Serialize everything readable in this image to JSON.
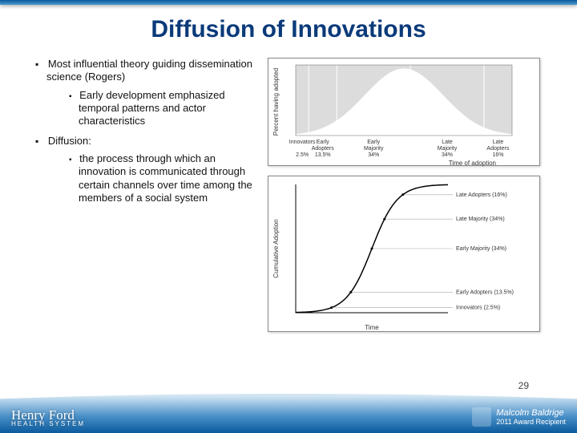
{
  "title": "Diffusion of Innovations",
  "bullets": {
    "b1": "Most influential theory guiding dissemination science (Rogers)",
    "b1_1": "Early development emphasized temporal patterns and actor characteristics",
    "b2": "Diffusion:",
    "b2_1": "the process through which an innovation is communicated through certain channels over time among the members of a social system"
  },
  "top_chart": {
    "type": "bell-curve-segments",
    "x_axis_label": "Time of adoption",
    "y_axis_label": "Percent having adopted",
    "background_color": "#dcdcdc",
    "curve_color": "#ffffff",
    "text_color": "#333333",
    "segments": [
      {
        "label": "Innovators",
        "pct": "2.5%",
        "p": 0.06
      },
      {
        "label": "Early Adopters",
        "pct": "13.5%",
        "p": 0.19
      },
      {
        "label": "Early Majority",
        "pct": "34%",
        "p": 0.53
      },
      {
        "label": "Late Majority",
        "pct": "34%",
        "p": 0.87
      },
      {
        "label": "Late Adopters",
        "pct": "16%",
        "p": 1.0
      }
    ]
  },
  "bot_chart": {
    "type": "s-curve",
    "x_axis_label": "Time",
    "y_axis_label": "Cumulative Adoption",
    "curve_color": "#000000",
    "axis_color": "#000000",
    "guide_color": "#aaaaaa",
    "background_color": "#ffffff",
    "callouts": [
      {
        "label": "Innovators (2.5%)",
        "y": 0.04
      },
      {
        "label": "Early Adopters (13.5%)",
        "y": 0.16
      },
      {
        "label": "Early Majority (34%)",
        "y": 0.5
      },
      {
        "label": "Late Majority (34%)",
        "y": 0.73
      },
      {
        "label": "Late Adopters (16%)",
        "y": 0.92
      }
    ]
  },
  "page_number": "29",
  "footer": {
    "left_logo_line1": "Henry Ford",
    "left_logo_line2": "HEALTH SYSTEM",
    "right_logo_line1": "Malcolm Baldrige",
    "right_logo_line2": "2011 Award Recipient"
  },
  "colors": {
    "title_color": "#0a3a7a",
    "top_border_start": "#0a5a9c",
    "top_border_end": "#4a9ad0"
  }
}
